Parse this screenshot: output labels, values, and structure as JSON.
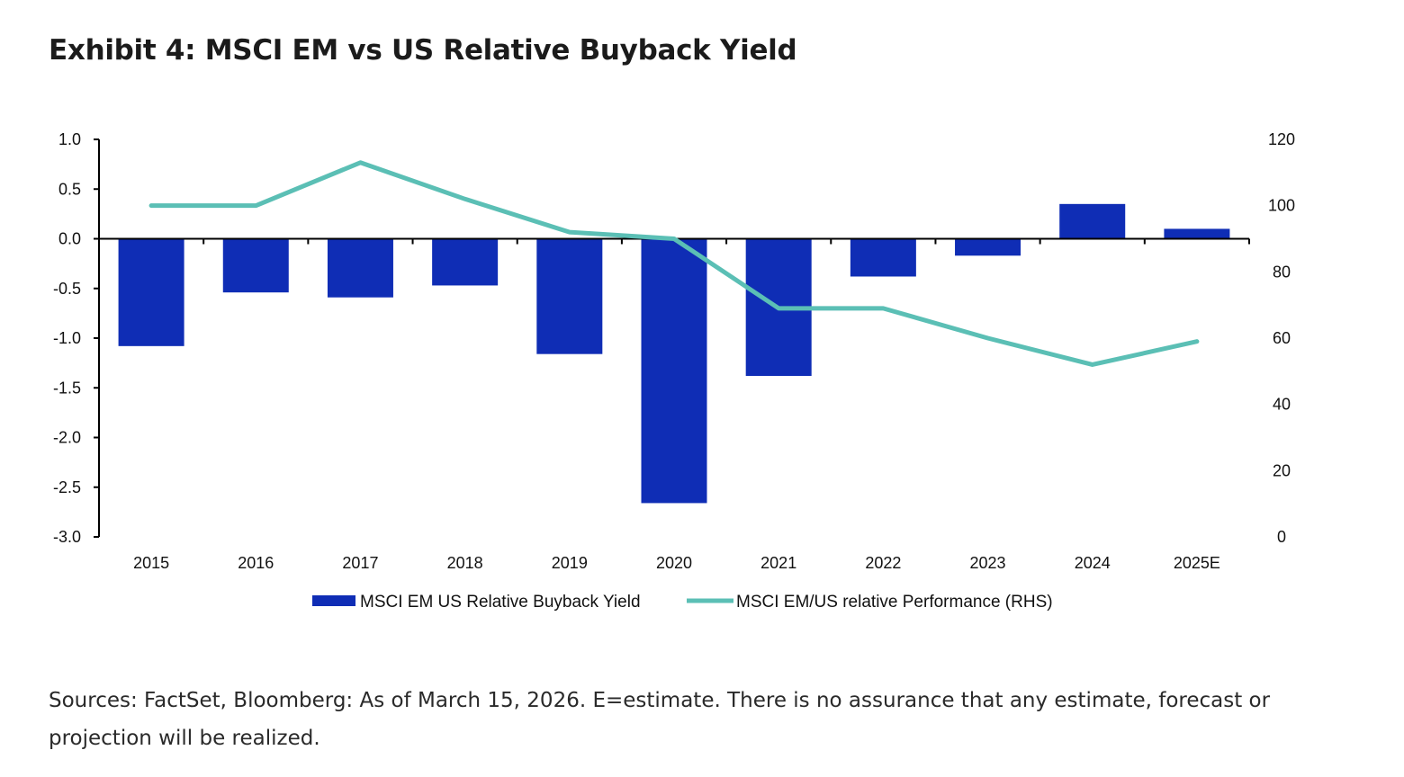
{
  "title": "Exhibit 4: MSCI EM vs US Relative Buyback Yield",
  "footnote": "Sources: FactSet, Bloomberg: As of March 15, 2026. E=estimate. There is no assurance that any estimate, forecast or projection will be realized.",
  "chart_data": {
    "type": "bar",
    "title": "Exhibit 4: MSCI EM vs US Relative Buyback Yield",
    "categories": [
      "2015",
      "2016",
      "2017",
      "2018",
      "2019",
      "2020",
      "2021",
      "2022",
      "2023",
      "2024",
      "2025E"
    ],
    "series": [
      {
        "name": "MSCI EM US Relative Buyback Yield",
        "type": "bar",
        "axis": "left",
        "color": "#0f2db5",
        "values": [
          -1.08,
          -0.54,
          -0.59,
          -0.47,
          -1.16,
          -2.66,
          -1.38,
          -0.38,
          -0.17,
          0.35,
          0.1
        ]
      },
      {
        "name": "MSCI EM/US relative Performance (RHS)",
        "type": "line",
        "axis": "right",
        "color": "#5bbfb5",
        "values": [
          100,
          100,
          113,
          102,
          92,
          90,
          69,
          69,
          60,
          52,
          59
        ]
      }
    ],
    "y_left": {
      "min": -3.0,
      "max": 1.0,
      "ticks": [
        "1.0",
        "0.5",
        "0.0",
        "-0.5",
        "-1.0",
        "-1.5",
        "-2.0",
        "-2.5",
        "-3.0"
      ]
    },
    "y_right": {
      "min": 0,
      "max": 120,
      "ticks": [
        "120",
        "100",
        "80",
        "60",
        "40",
        "20",
        "0"
      ]
    },
    "grid": false,
    "legend_position": "bottom"
  }
}
